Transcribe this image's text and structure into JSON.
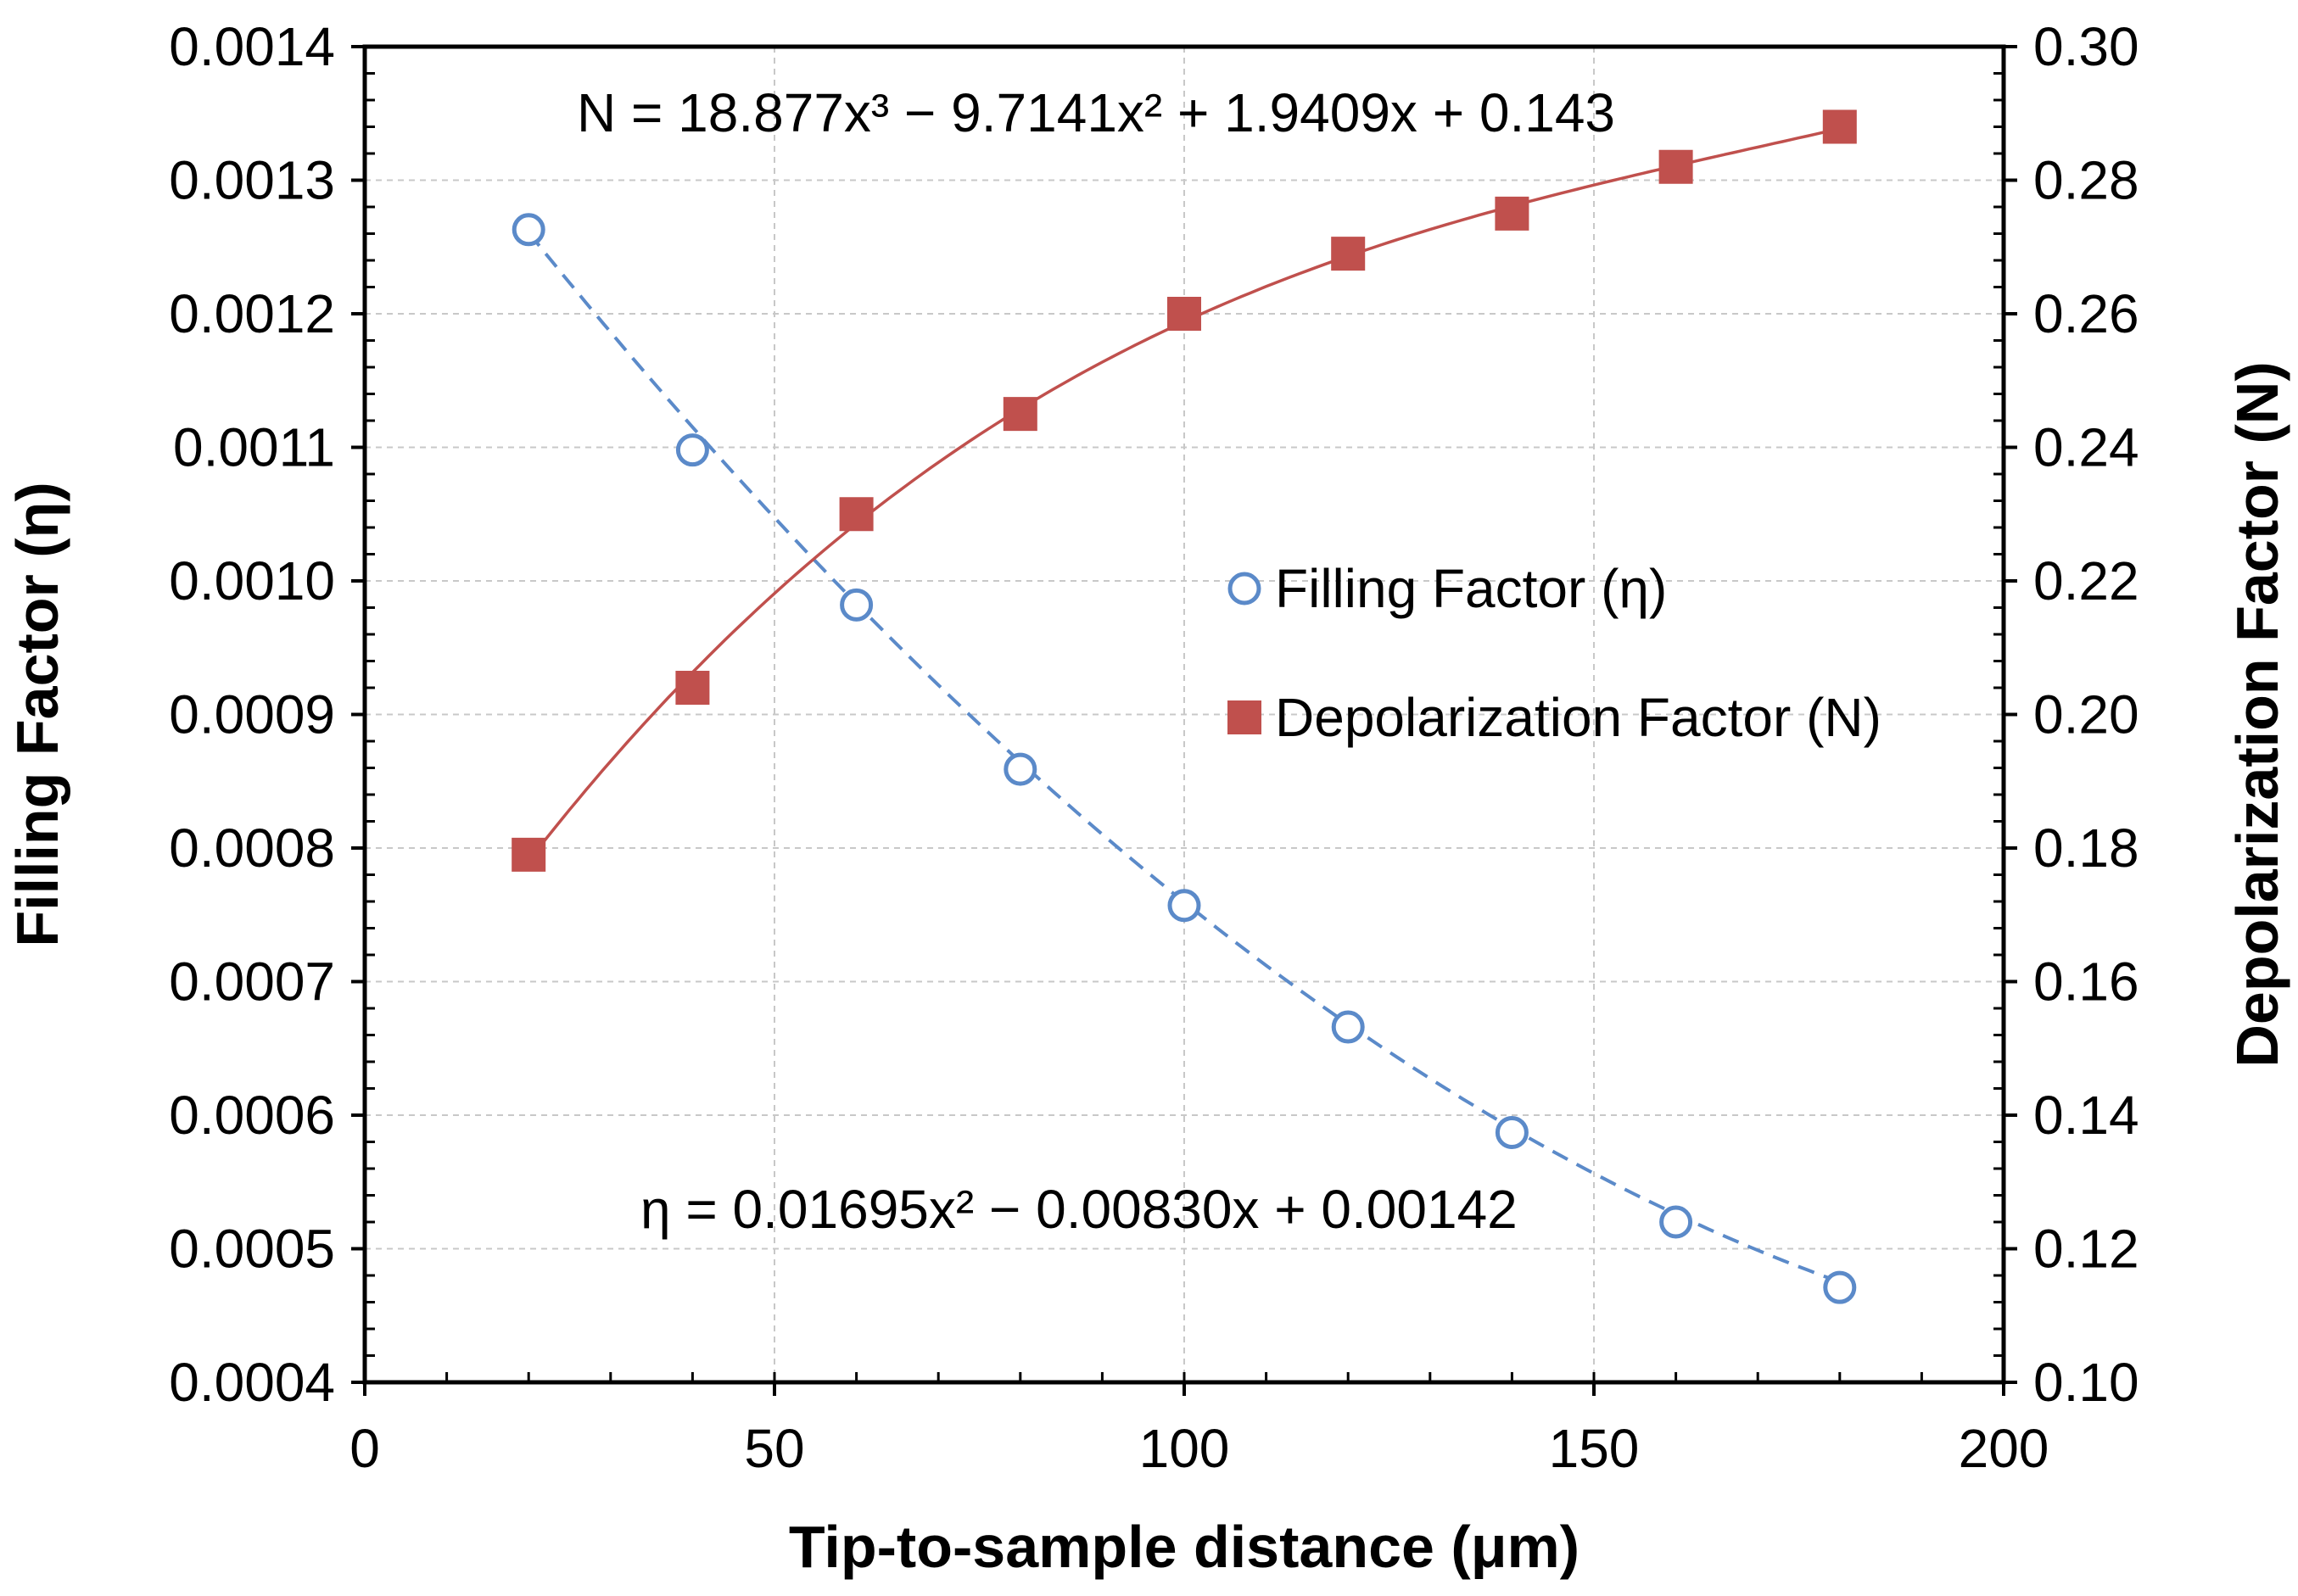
{
  "chart_data": {
    "type": "scatter",
    "xlabel": "Tip-to-sample distance (μm)",
    "ylabel_left": "Filling Factor (η)",
    "ylabel_right": "Depolarization Factor (N)",
    "xlim": [
      0,
      200
    ],
    "ylim_left": [
      0.0004,
      0.0014
    ],
    "ylim_right": [
      0.1,
      0.3
    ],
    "grid": true,
    "x_ticks": [
      "0",
      "50",
      "100",
      "150",
      "200"
    ],
    "y_left_ticks": [
      "0.0004",
      "0.0005",
      "0.0006",
      "0.0007",
      "0.0008",
      "0.0009",
      "0.0010",
      "0.0011",
      "0.0012",
      "0.0013",
      "0.0014"
    ],
    "y_right_ticks": [
      "0.10",
      "0.12",
      "0.14",
      "0.16",
      "0.18",
      "0.20",
      "0.22",
      "0.24",
      "0.26",
      "0.28",
      "0.30"
    ],
    "x": [
      20,
      40,
      60,
      80,
      100,
      120,
      140,
      160,
      180
    ],
    "series": [
      {
        "name": "Filling Factor (η)",
        "axis": "left",
        "marker": "open-circle",
        "line": "dashed",
        "color": "#5b8ac9",
        "values": [
          0.001263,
          0.001098,
          0.000982,
          0.000859,
          0.000757,
          0.000666,
          0.000587,
          0.00052,
          0.000471
        ],
        "fit": {
          "kind": "poly2",
          "coef": [
            0.01695,
            -0.0083,
            0.00142
          ],
          "x_scale": 0.001
        },
        "equation": "η = 0.01695x² − 0.00830x + 0.00142"
      },
      {
        "name": "Depolarization Factor (N)",
        "axis": "right",
        "marker": "filled-square",
        "line": "solid",
        "color": "#c0504d",
        "values": [
          0.179,
          0.204,
          0.23,
          0.245,
          0.26,
          0.269,
          0.275,
          0.282,
          0.288
        ],
        "fit": {
          "kind": "poly3",
          "coef": [
            18.877,
            -9.7141,
            1.9409,
            0.143
          ],
          "x_scale": 0.001
        },
        "equation": "N = 18.877x³ − 9.7141x² + 1.9409x + 0.143"
      }
    ],
    "legend_position": "center-right"
  }
}
